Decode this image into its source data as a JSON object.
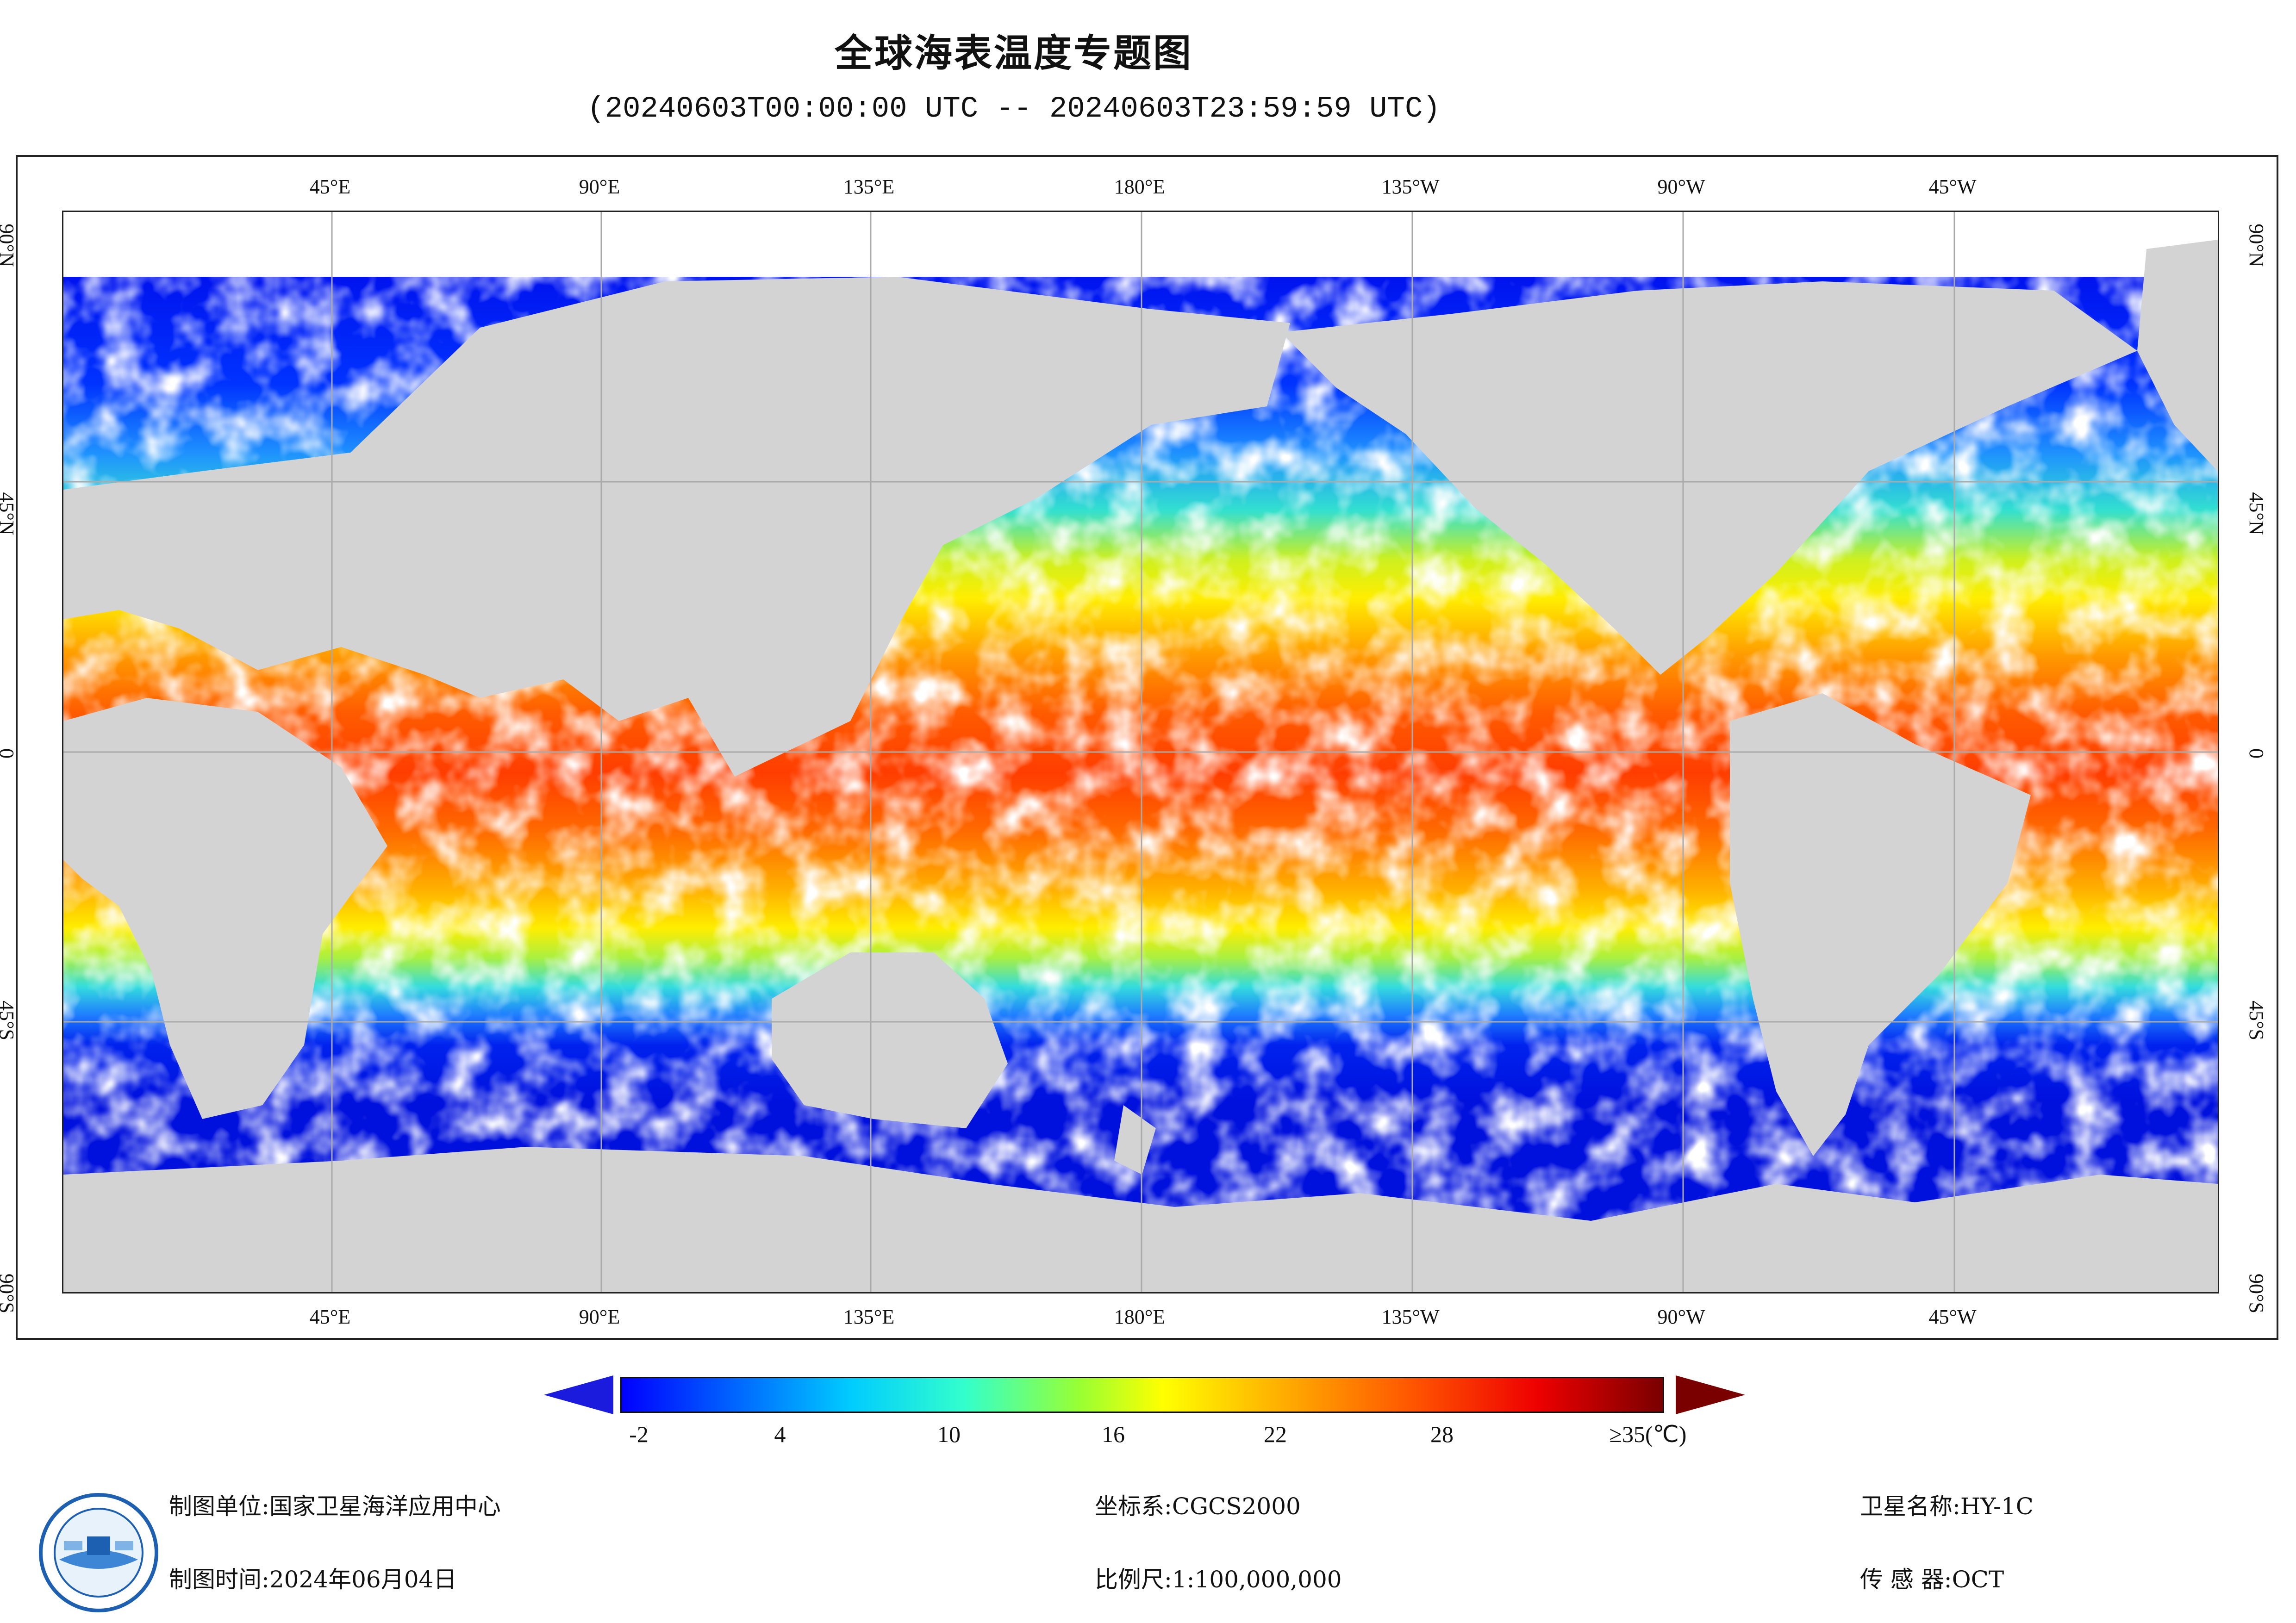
{
  "header": {
    "title": "全球海表温度专题图",
    "subtitle": "(20240603T00:00:00 UTC -- 20240603T23:59:59 UTC)"
  },
  "map": {
    "projection": "equirectangular",
    "lon_ticks": [
      "45°E",
      "90°E",
      "135°E",
      "180°E",
      "135°W",
      "90°W",
      "45°W"
    ],
    "lat_ticks": [
      "90°N",
      "45°N",
      "0",
      "45°S",
      "90°S"
    ],
    "land_color": "#d3d3d3",
    "ocean_nodata_color": "#ffffff",
    "grid_color": "#aaaaaa"
  },
  "colorbar": {
    "labels": [
      "-2",
      "4",
      "10",
      "16",
      "22",
      "28",
      "≥35(℃)"
    ],
    "min": -2,
    "max": 35,
    "colors": [
      "#0000ff",
      "#0066ff",
      "#00ccff",
      "#33ffcc",
      "#99ff33",
      "#ffff00",
      "#ffaa00",
      "#ff5500",
      "#ee0000",
      "#7a0000"
    ]
  },
  "footer": {
    "producer_label": "制图单位:",
    "producer_value": "国家卫星海洋应用中心",
    "date_label": "制图时间:",
    "date_value": "2024年06月04日",
    "crs_label": "坐标系:",
    "crs_value": "CGCS2000",
    "scale_label": "比例尺:",
    "scale_value": "1:100,000,000",
    "satellite_label": "卫星名称:",
    "satellite_value": "HY-1C",
    "sensor_label": "传 感 器:",
    "sensor_value": "OCT"
  }
}
